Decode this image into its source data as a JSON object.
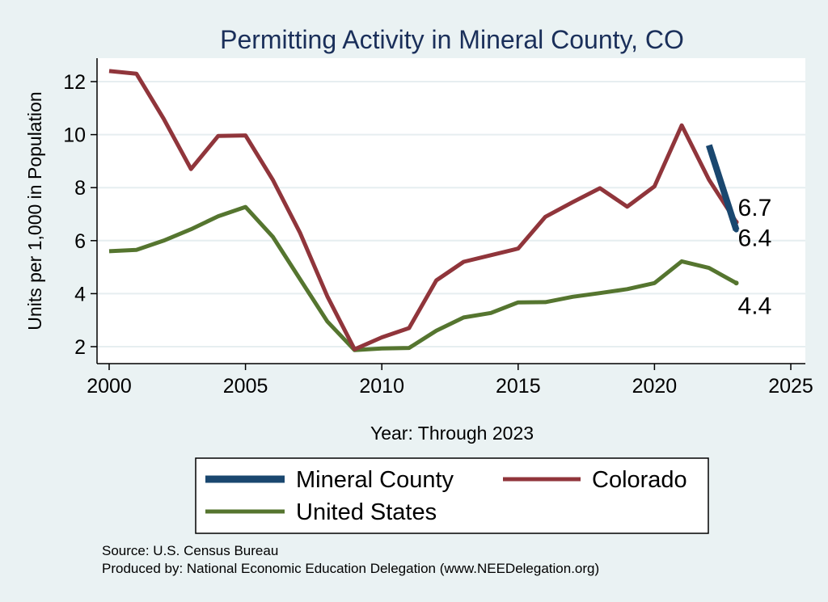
{
  "chart_data": {
    "type": "line",
    "title": "Permitting Activity in Mineral County, CO",
    "xlabel": "Year: Through 2023",
    "ylabel": "Units per 1,000 in Population",
    "xlim": [
      2000,
      2025
    ],
    "ylim": [
      1.6,
      12.9
    ],
    "xticks": [
      2000,
      2005,
      2010,
      2015,
      2020,
      2025
    ],
    "yticks": [
      2,
      4,
      6,
      8,
      10,
      12
    ],
    "xtick_labels": [
      "2000",
      "2005",
      "2010",
      "2015",
      "2020",
      "2025"
    ],
    "ytick_labels": [
      "2",
      "4",
      "6",
      "8",
      "10",
      "12"
    ],
    "grid": true,
    "series": [
      {
        "name": "Mineral County",
        "color": "#1a476f",
        "x": [
          2022,
          2023
        ],
        "values": [
          9.6,
          6.4
        ],
        "end_label": "6.4"
      },
      {
        "name": "Colorado",
        "color": "#90353b",
        "x": [
          2000,
          2001,
          2002,
          2003,
          2004,
          2005,
          2006,
          2007,
          2008,
          2009,
          2010,
          2011,
          2012,
          2013,
          2014,
          2015,
          2016,
          2017,
          2018,
          2019,
          2020,
          2021,
          2022,
          2023
        ],
        "values": [
          12.4,
          12.3,
          10.6,
          8.7,
          9.95,
          9.97,
          8.3,
          6.3,
          3.9,
          1.9,
          2.35,
          2.7,
          4.5,
          5.2,
          5.45,
          5.7,
          6.9,
          7.45,
          7.98,
          7.28,
          8.05,
          10.35,
          8.3,
          6.7
        ],
        "end_label": "6.7"
      },
      {
        "name": "United States",
        "color": "#55752f",
        "x": [
          2000,
          2001,
          2002,
          2003,
          2004,
          2005,
          2006,
          2007,
          2008,
          2009,
          2010,
          2011,
          2012,
          2013,
          2014,
          2015,
          2016,
          2017,
          2018,
          2019,
          2020,
          2021,
          2022,
          2023
        ],
        "values": [
          5.6,
          5.65,
          6.0,
          6.43,
          6.92,
          7.27,
          6.15,
          4.55,
          2.95,
          1.87,
          1.93,
          1.95,
          2.6,
          3.1,
          3.27,
          3.67,
          3.68,
          3.88,
          4.02,
          4.17,
          4.4,
          5.22,
          4.97,
          4.4
        ],
        "end_label": "4.4"
      }
    ],
    "legend": {
      "placement": "bottom",
      "entries": [
        "Mineral County",
        "Colorado",
        "United States"
      ]
    }
  },
  "source_lines": {
    "source": "Source: U.S. Census Bureau",
    "produced": "Produced by: National Economic Education Delegation (www.NEEDelegation.org)"
  }
}
